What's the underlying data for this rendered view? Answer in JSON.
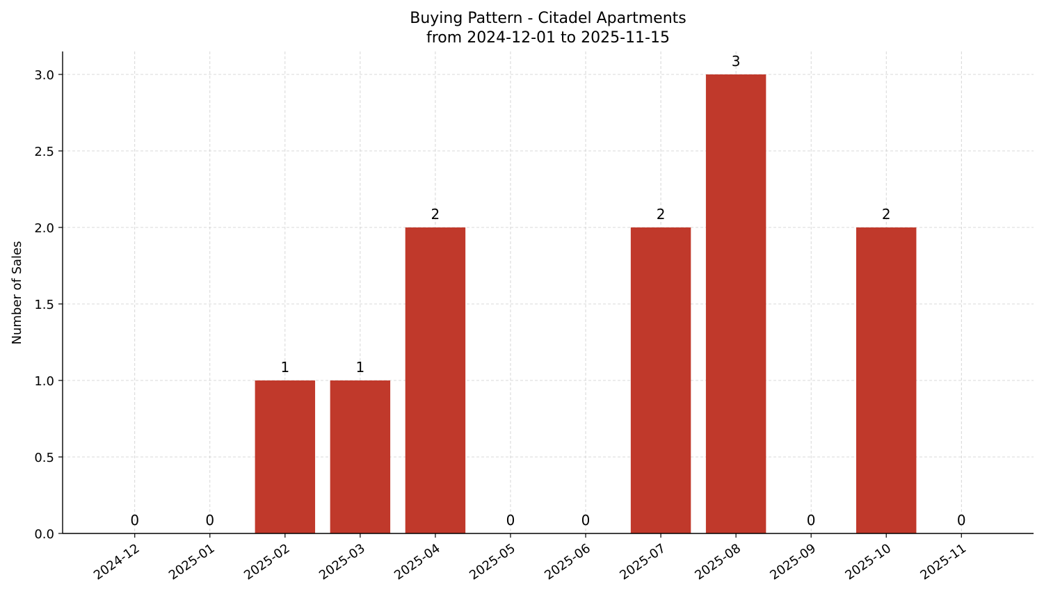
{
  "chart_data": {
    "type": "bar",
    "title": "Buying Pattern - Citadel Apartments",
    "subtitle": "from 2024-12-01 to 2025-11-15",
    "xlabel": "",
    "ylabel": "Number of Sales",
    "categories": [
      "2024-12",
      "2025-01",
      "2025-02",
      "2025-03",
      "2025-04",
      "2025-05",
      "2025-06",
      "2025-07",
      "2025-08",
      "2025-09",
      "2025-10",
      "2025-11"
    ],
    "values": [
      0,
      0,
      1,
      1,
      2,
      0,
      0,
      2,
      3,
      0,
      2,
      0
    ],
    "data_labels": [
      "0",
      "0",
      "1",
      "1",
      "2",
      "0",
      "0",
      "2",
      "3",
      "0",
      "2",
      "0"
    ],
    "ylim": [
      0,
      3.15
    ],
    "yticks": [
      0.0,
      0.5,
      1.0,
      1.5,
      2.0,
      2.5,
      3.0
    ],
    "ytick_labels": [
      "0.0",
      "0.5",
      "1.0",
      "1.5",
      "2.0",
      "2.5",
      "3.0"
    ],
    "grid": true,
    "bar_color": "#c0392b"
  }
}
